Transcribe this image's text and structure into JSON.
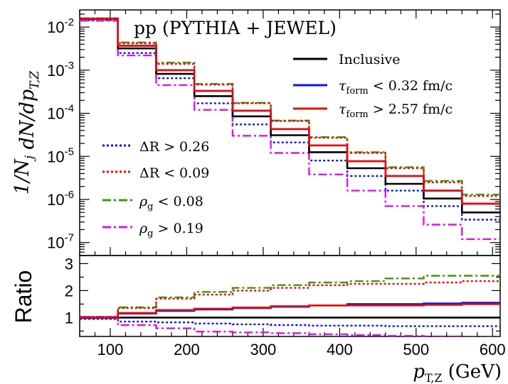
{
  "chart_data": {
    "type": "step",
    "title": "pp (PYTHIA + JEWEL)",
    "ylabel": "1/N_j dN/dp_{T,Z}",
    "ratio_ylabel": "Ratio",
    "xlabel": "p_{T,Z} (GeV)",
    "xlim": [
      60,
      610
    ],
    "ylim": [
      5e-08,
      0.025
    ],
    "ratio_ylim": [
      0.3,
      3.3
    ],
    "x_ticks": [
      "100",
      "200",
      "300",
      "400",
      "500",
      "600"
    ],
    "y_ticks": [
      {
        "base": "10",
        "exp": "-2"
      },
      {
        "base": "10",
        "exp": "-3"
      },
      {
        "base": "10",
        "exp": "-4"
      },
      {
        "base": "10",
        "exp": "-5"
      },
      {
        "base": "10",
        "exp": "-6"
      },
      {
        "base": "10",
        "exp": "-7"
      }
    ],
    "ratio_ticks": [
      "1",
      "2",
      "3"
    ],
    "bin_edges": [
      60,
      110,
      160,
      210,
      260,
      310,
      360,
      410,
      460,
      510,
      560,
      610
    ],
    "series": [
      {
        "name": "Inclusive",
        "color": "#000000",
        "style": "solid",
        "values": [
          0.0155,
          0.0032,
          0.00082,
          0.00025,
          8.5e-05,
          3.1e-05,
          1.25e-05,
          5.3e-06,
          2.3e-06,
          1.05e-06,
          5e-07
        ],
        "ratio": [
          1,
          1,
          1,
          1,
          1,
          1,
          1,
          1,
          1,
          1,
          1
        ]
      },
      {
        "name": "tau_form < 0.32 fm/c",
        "color": "#0a14e6",
        "style": "solid",
        "values": [
          0.0155,
          0.0037,
          0.001,
          0.00033,
          0.000115,
          4.3e-05,
          1.8e-05,
          7.7e-06,
          3.5e-06,
          1.6e-06,
          8e-07
        ],
        "ratio": [
          0.98,
          1.15,
          1.25,
          1.3,
          1.35,
          1.4,
          1.45,
          1.5,
          1.5,
          1.52,
          1.55
        ]
      },
      {
        "name": "tau_form > 2.57 fm/c",
        "color": "#e60a0a",
        "style": "solid",
        "values": [
          0.0155,
          0.0037,
          0.001,
          0.00033,
          0.000115,
          4.3e-05,
          1.8e-05,
          7.7e-06,
          3.5e-06,
          1.6e-06,
          8e-07
        ],
        "ratio": [
          1.0,
          1.17,
          1.28,
          1.33,
          1.37,
          1.42,
          1.45,
          1.45,
          1.45,
          1.47,
          1.5
        ]
      },
      {
        "name": "ΔR > 0.26",
        "color": "#0a14e6",
        "style": "dotted",
        "values": [
          0.0145,
          0.0025,
          0.00065,
          0.00017,
          5.5e-05,
          2.1e-05,
          8e-06,
          3.5e-06,
          1.6e-06,
          7e-07,
          3.4e-07
        ],
        "ratio": [
          0.95,
          0.85,
          0.82,
          0.78,
          0.75,
          0.72,
          0.7,
          0.7,
          0.68,
          0.68,
          0.68
        ]
      },
      {
        "name": "ΔR < 0.09",
        "color": "#e60a0a",
        "style": "dotted",
        "values": [
          0.016,
          0.0042,
          0.0014,
          0.00046,
          0.00017,
          6.6e-05,
          2.7e-05,
          1.2e-05,
          5.3e-06,
          2.5e-06,
          1.2e-06
        ],
        "ratio": [
          1.03,
          1.35,
          1.7,
          1.85,
          2.0,
          2.1,
          2.2,
          2.25,
          2.25,
          2.3,
          2.35
        ]
      },
      {
        "name": "ρ_g < 0.08",
        "color": "#3a9a00",
        "style": "dashdot",
        "values": [
          0.016,
          0.0044,
          0.0015,
          0.00048,
          0.000175,
          6.8e-05,
          2.8e-05,
          1.25e-05,
          5.6e-06,
          2.7e-06,
          1.3e-06
        ],
        "ratio": [
          1.03,
          1.38,
          1.75,
          1.95,
          2.1,
          2.2,
          2.3,
          2.35,
          2.45,
          2.55,
          2.55
        ]
      },
      {
        "name": "ρ_g > 0.19",
        "color": "#d814ee",
        "style": "dashdot",
        "values": [
          0.014,
          0.0022,
          0.00045,
          0.00012,
          3e-05,
          1.2e-05,
          3.8e-06,
          1.6e-06,
          7e-07,
          2.6e-07,
          1.2e-07
        ],
        "ratio": [
          1.02,
          0.72,
          0.6,
          0.48,
          0.45,
          0.42,
          0.38,
          0.35,
          0.32,
          0.3,
          0.28
        ]
      }
    ],
    "legend_top": [
      {
        "ref": 0,
        "label": "Inclusive"
      },
      {
        "ref": 1,
        "label": "τ_form < 0.32 fm/c"
      },
      {
        "ref": 2,
        "label": "τ_form > 2.57 fm/c"
      }
    ],
    "legend_bottom": [
      {
        "ref": 3,
        "label": "ΔR > 0.26"
      },
      {
        "ref": 4,
        "label": "ΔR < 0.09"
      },
      {
        "ref": 5,
        "label": "ρ_g < 0.08"
      },
      {
        "ref": 6,
        "label": "ρ_g > 0.19"
      }
    ]
  }
}
